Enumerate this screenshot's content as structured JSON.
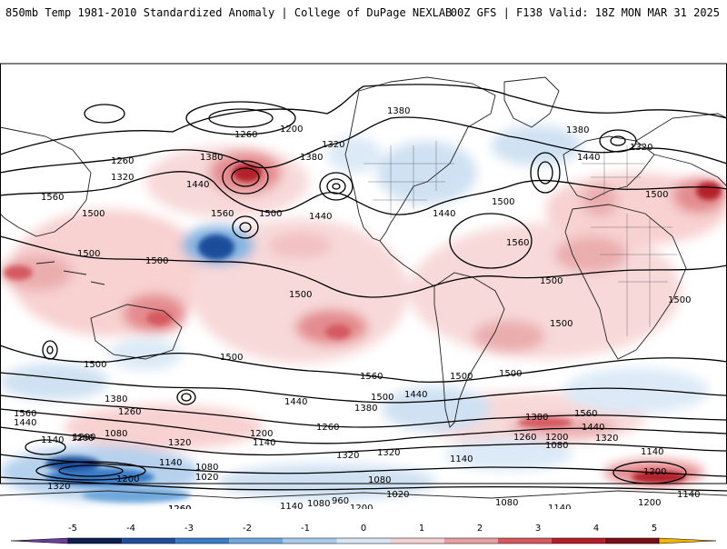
{
  "header": {
    "title_left": "850mb Temp 1981-2010 Standardized Anomaly | College of DuPage NEXLAB",
    "title_right": "00Z GFS | F138 Valid: 18Z MON MAR 31 2025"
  },
  "map": {
    "projection": "global equirectangular",
    "anomaly_colors": {
      "strong_warm": "#b3202a",
      "warm": "#e0787c",
      "light_warm": "#f7c9c9",
      "neutral": "#ffffff",
      "light_cool": "#c7dcf0",
      "cool": "#6fa8dc",
      "strong_cool": "#1f4e9c"
    },
    "contour_labels": [
      {
        "text": "1380"
      },
      {
        "text": "1260"
      },
      {
        "text": "1200"
      },
      {
        "text": "1320"
      },
      {
        "text": "1260"
      },
      {
        "text": "1320"
      },
      {
        "text": "1380"
      },
      {
        "text": "1380"
      },
      {
        "text": "1440"
      },
      {
        "text": "1560"
      },
      {
        "text": "1500"
      },
      {
        "text": "1560"
      },
      {
        "text": "1500"
      },
      {
        "text": "1440"
      },
      {
        "text": "1500"
      },
      {
        "text": "1500"
      },
      {
        "text": "1440"
      },
      {
        "text": "1500"
      },
      {
        "text": "1380"
      },
      {
        "text": "1440"
      },
      {
        "text": "1320"
      },
      {
        "text": "1500"
      },
      {
        "text": "1560"
      },
      {
        "text": "1500"
      },
      {
        "text": "1500"
      },
      {
        "text": "1500"
      },
      {
        "text": "1500"
      },
      {
        "text": "1500"
      },
      {
        "text": "1560"
      },
      {
        "text": "1500"
      },
      {
        "text": "1500"
      },
      {
        "text": "1380"
      },
      {
        "text": "1260"
      },
      {
        "text": "1440"
      },
      {
        "text": "1500"
      },
      {
        "text": "1440"
      },
      {
        "text": "1380"
      },
      {
        "text": "1260"
      },
      {
        "text": "1560"
      },
      {
        "text": "1440"
      },
      {
        "text": "1320"
      },
      {
        "text": "1200"
      },
      {
        "text": "1080"
      },
      {
        "text": "1140"
      },
      {
        "text": "1200"
      },
      {
        "text": "1140"
      },
      {
        "text": "1320"
      },
      {
        "text": "1140"
      },
      {
        "text": "1080"
      },
      {
        "text": "1200"
      },
      {
        "text": "1020"
      },
      {
        "text": "1320"
      },
      {
        "text": "1260"
      },
      {
        "text": "1080"
      },
      {
        "text": "1020"
      },
      {
        "text": "1140"
      },
      {
        "text": "1080"
      },
      {
        "text": "1320"
      },
      {
        "text": "1260"
      },
      {
        "text": "1200"
      },
      {
        "text": "1140"
      },
      {
        "text": "1080"
      },
      {
        "text": "960"
      },
      {
        "text": "1200"
      },
      {
        "text": "1080"
      },
      {
        "text": "1140"
      },
      {
        "text": "1200"
      },
      {
        "text": "1260"
      },
      {
        "text": "1140"
      },
      {
        "text": "1200"
      },
      {
        "text": "1140"
      },
      {
        "text": "1200"
      },
      {
        "text": "1200"
      },
      {
        "text": "1320"
      },
      {
        "text": "1440"
      },
      {
        "text": "1380"
      },
      {
        "text": "1560"
      },
      {
        "text": "1500"
      }
    ]
  },
  "colorbar": {
    "ticks": [
      "-5",
      "-4",
      "-3",
      "-2",
      "-1",
      "0",
      "1",
      "2",
      "3",
      "4",
      "5"
    ],
    "colors": [
      "#0d1f4f",
      "#1f4e9c",
      "#3a7cc7",
      "#6fa8dc",
      "#a9c9ea",
      "#d6e6f5",
      "#f4d2d2",
      "#e8a0a2",
      "#d45a60",
      "#b3202a",
      "#7a0f16"
    ],
    "min_color": "#6a3d9a",
    "max_color": "#f5b400"
  }
}
